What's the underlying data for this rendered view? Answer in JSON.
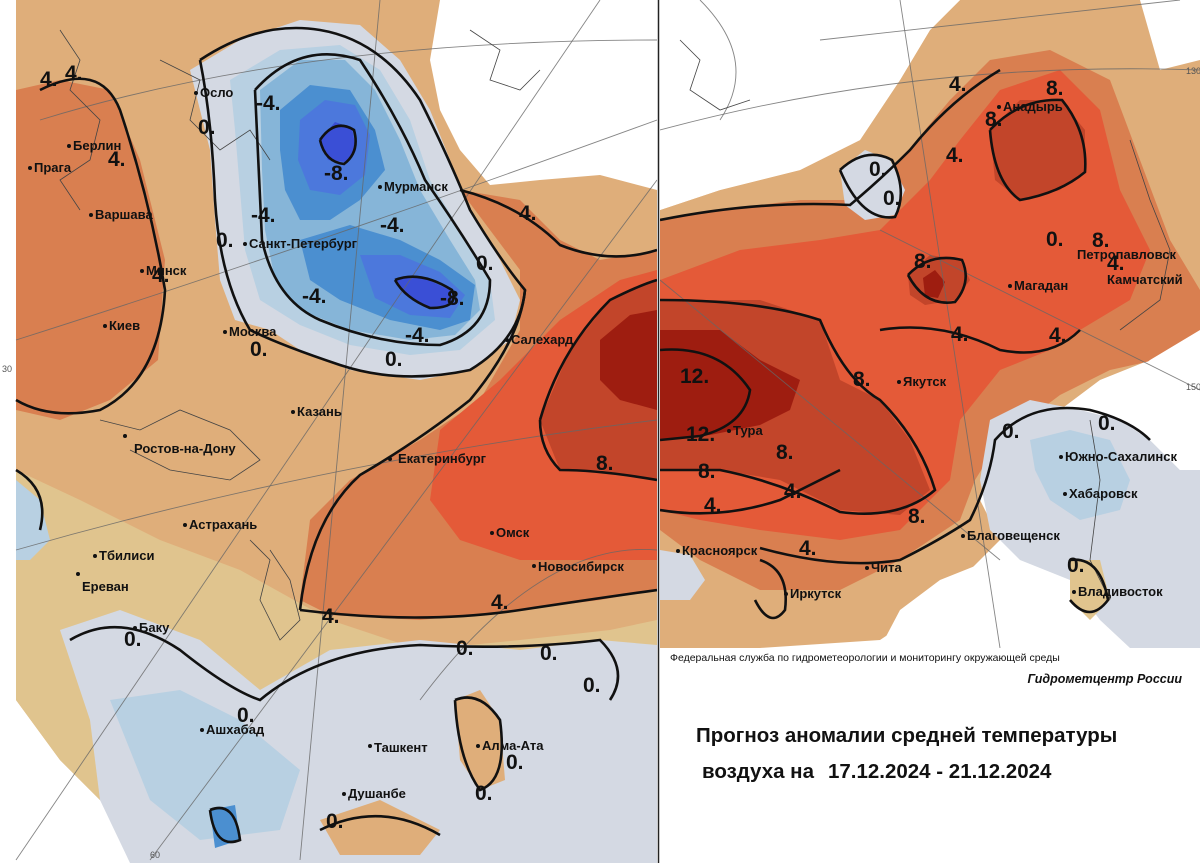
{
  "header": {
    "agency": "Федеральная служба по гидрометеорологии и мониторингу окружающей среды",
    "center": "Гидрометцентр России",
    "title_line1": "Прогноз аномалии средней температуры",
    "title_line2_prefix": "воздуха на",
    "date_range": "17.12.2024 - 21.12.2024"
  },
  "legend_colors": {
    "anomaly_minus_8": "#3a4fd6",
    "anomaly_minus_6": "#4c78dc",
    "anomaly_minus_4": "#4b8fd0",
    "anomaly_minus_2": "#86b5d8",
    "anomaly_minus_1": "#b8d0e2",
    "anomaly_0": "#d4d9e3",
    "anomaly_plus_1": "#e0c48e",
    "anomaly_plus_2": "#dfae7a",
    "anomaly_plus_4": "#d97f50",
    "anomaly_plus_6": "#e45a38",
    "anomaly_plus_8": "#c2452a",
    "anomaly_plus_12": "#9e1d10"
  },
  "grid_ticks": {
    "left_lat": "30",
    "bottom_lon": "60",
    "right_top": "130",
    "right_mid": "150"
  },
  "cities": {
    "oslo": "Осло",
    "berlin": "Берлин",
    "praga": "Прага",
    "varshava": "Варшава",
    "minsk": "Минск",
    "kiev": "Киев",
    "moskva": "Москва",
    "spb": "Санкт-Петербург",
    "murmansk": "Мурманск",
    "salekhard": "Салехард",
    "kazan": "Казань",
    "rostov": "Ростов-на-Дону",
    "ekaterinburg": "Екатеринбург",
    "astrakhan": "Астрахань",
    "tbilisi": "Тбилиси",
    "erevan": "Ереван",
    "baku": "Баку",
    "ashkhabad": "Ашхабад",
    "tashkent": "Ташкент",
    "alma_ata": "Алма-Ата",
    "dushanbe": "Душанбе",
    "omsk": "Омск",
    "novosibirsk": "Новосибирск",
    "krasnoyarsk": "Красноярск",
    "irkutsk": "Иркутск",
    "chita": "Чита",
    "tura": "Тура",
    "yakutsk": "Якутск",
    "magadan": "Магадан",
    "anadyr": "Анадырь",
    "petropavlovsk_1": "Петропавловск",
    "petropavlovsk_2": "Камчатский",
    "blagoveshchensk": "Благовещенск",
    "khabarovsk": "Хабаровск",
    "yuzhno": "Южно-Сахалинск",
    "vladivostok": "Владивосток"
  },
  "isolines": {
    "left": [
      "4.",
      "4.",
      "4.",
      "4.",
      "0.",
      "-4.",
      "-8.",
      "-4.",
      "0.",
      "-4.",
      "-4.",
      "-8.",
      "0.",
      "-4.",
      "0.",
      "0.",
      "4.",
      "0.",
      "8.",
      "4.",
      "4.",
      "0.",
      "0.",
      "0.",
      "0.",
      "0.",
      "0.",
      "0."
    ],
    "right": [
      "4.",
      "8.",
      "8.",
      "4.",
      "0.",
      "0.",
      "8.",
      "0.",
      "8.",
      "4.",
      "12.",
      "12.",
      "8.",
      "8.",
      "8.",
      "4.",
      "4.",
      "4.",
      "8.",
      "4.",
      "4.",
      "0.",
      "0.",
      "0."
    ]
  }
}
